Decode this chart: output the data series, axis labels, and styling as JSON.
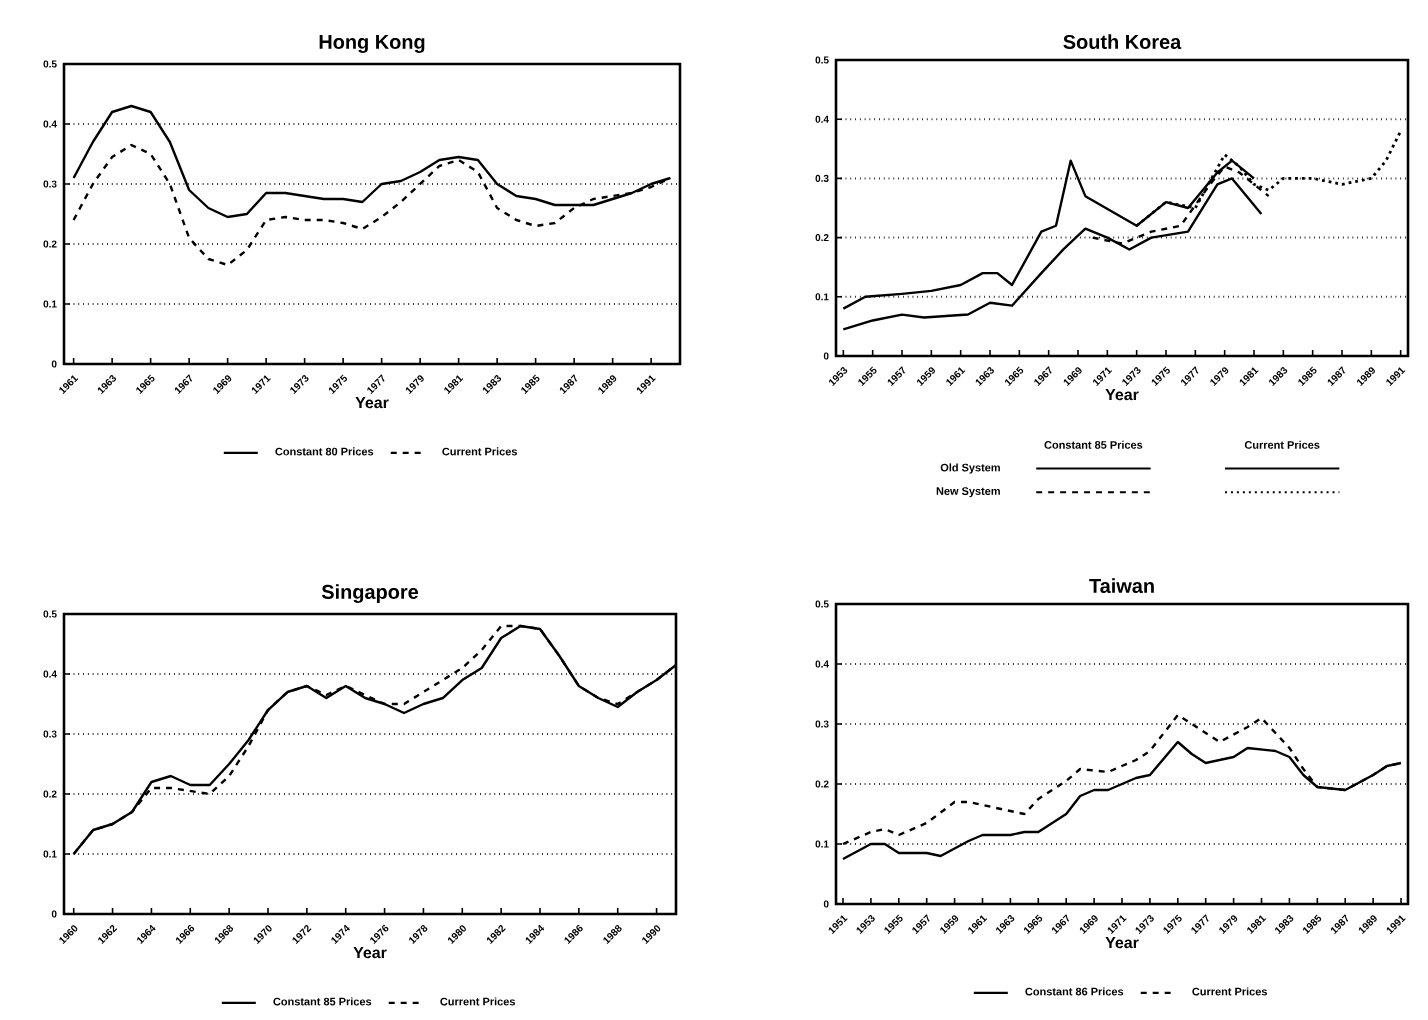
{
  "chart_data": [
    {
      "type": "line",
      "title": "Hong Kong",
      "xlabel": "Year",
      "xlim": [
        1960.5,
        1992.5
      ],
      "ylim": [
        0,
        0.5
      ],
      "xticks": [
        1961,
        1963,
        1965,
        1967,
        1969,
        1971,
        1973,
        1975,
        1977,
        1979,
        1981,
        1983,
        1985,
        1987,
        1989,
        1991
      ],
      "yticks": [
        0,
        0.1,
        0.2,
        0.3,
        0.4,
        0.5
      ],
      "grid": "y",
      "legend": "bottom",
      "series": [
        {
          "name": "Constant 80 Prices",
          "color": "#000000",
          "line_style": "solid",
          "x": [
            1961,
            1962,
            1963,
            1964,
            1965,
            1966,
            1967,
            1968,
            1969,
            1970,
            1971,
            1972,
            1974,
            1975,
            1976,
            1977,
            1978,
            1979,
            1980,
            1981,
            1982,
            1983,
            1984,
            1985,
            1986,
            1987,
            1988,
            1989,
            1990,
            1991,
            1992
          ],
          "values": [
            0.31,
            0.37,
            0.42,
            0.43,
            0.42,
            0.37,
            0.29,
            0.26,
            0.245,
            0.25,
            0.285,
            0.285,
            0.275,
            0.275,
            0.27,
            0.3,
            0.305,
            0.32,
            0.34,
            0.345,
            0.34,
            0.3,
            0.28,
            0.275,
            0.265,
            0.265,
            0.265,
            0.275,
            0.285,
            0.3,
            0.31
          ]
        },
        {
          "name": "Current Prices",
          "color": "#000000",
          "line_style": "dashed",
          "x": [
            1961,
            1962,
            1963,
            1964,
            1965,
            1966,
            1967,
            1968,
            1969,
            1970,
            1971,
            1972,
            1973,
            1974,
            1975,
            1976,
            1977,
            1978,
            1979,
            1980,
            1981,
            1982,
            1983,
            1984,
            1985,
            1986,
            1987,
            1988,
            1989,
            1990,
            1991,
            1992
          ],
          "values": [
            0.24,
            0.3,
            0.345,
            0.365,
            0.35,
            0.3,
            0.21,
            0.175,
            0.165,
            0.19,
            0.24,
            0.245,
            0.24,
            0.24,
            0.235,
            0.225,
            0.245,
            0.27,
            0.3,
            0.33,
            0.34,
            0.32,
            0.26,
            0.24,
            0.23,
            0.235,
            0.26,
            0.275,
            0.28,
            0.285,
            0.295,
            0.31
          ]
        }
      ]
    },
    {
      "type": "line",
      "title": "South Korea",
      "xlabel": "Year",
      "xlim": [
        1952.5,
        1991.5
      ],
      "ylim": [
        0,
        0.5
      ],
      "xticks": [
        1953,
        1955,
        1957,
        1959,
        1961,
        1963,
        1965,
        1967,
        1969,
        1971,
        1973,
        1975,
        1977,
        1979,
        1981,
        1983,
        1985,
        1987,
        1989,
        1991
      ],
      "yticks": [
        0,
        0.1,
        0.2,
        0.3,
        0.4,
        0.5
      ],
      "grid": "y",
      "legend": "bottom",
      "annotations": [
        "Constant 85 Prices",
        "Current Prices",
        "Old System",
        "New System"
      ],
      "series": [
        {
          "color": "#000000",
          "line_style": "solid",
          "x": [
            1953,
            1955,
            1957,
            1958.5,
            1961.5,
            1963,
            1964.5,
            1966.5,
            1968,
            1969.5,
            1971,
            1972.5,
            1974,
            1976.5,
            1978.5,
            1979.5,
            1981.5
          ],
          "values": [
            0.045,
            0.06,
            0.07,
            0.065,
            0.07,
            0.09,
            0.085,
            0.14,
            0.18,
            0.215,
            0.2,
            0.18,
            0.2,
            0.21,
            0.29,
            0.3,
            0.24
          ]
        },
        {
          "color": "#000000",
          "line_style": "solid",
          "x": [
            1953,
            1954.5,
            1957,
            1959,
            1961,
            1962.5,
            1963.5,
            1964.5,
            1966.5,
            1967.5,
            1968.5,
            1969.5,
            1973,
            1975,
            1976.5,
            1978.5,
            1979.5,
            1981
          ],
          "values": [
            0.08,
            0.1,
            0.105,
            0.11,
            0.12,
            0.14,
            0.14,
            0.12,
            0.21,
            0.22,
            0.33,
            0.27,
            0.22,
            0.26,
            0.25,
            0.31,
            0.33,
            0.3
          ]
        },
        {
          "color": "#000000",
          "line_style": "dashed",
          "x": [
            1970,
            1972,
            1974,
            1976,
            1978,
            1979,
            1980,
            1982
          ],
          "values": [
            0.2,
            0.19,
            0.21,
            0.22,
            0.29,
            0.32,
            0.31,
            0.27
          ]
        },
        {
          "color": "#000000",
          "line_style": "dotted",
          "x": [
            1973,
            1975,
            1977,
            1979,
            1980,
            1981,
            1982,
            1983,
            1985,
            1987,
            1989,
            1990,
            1991
          ],
          "values": [
            0.22,
            0.26,
            0.25,
            0.34,
            0.32,
            0.29,
            0.28,
            0.3,
            0.3,
            0.29,
            0.3,
            0.33,
            0.38
          ]
        }
      ]
    },
    {
      "type": "line",
      "title": "Singapore",
      "xlabel": "Year",
      "xlim": [
        1959.5,
        1991
      ],
      "ylim": [
        0,
        0.5
      ],
      "xticks": [
        1960,
        1962,
        1964,
        1966,
        1968,
        1970,
        1972,
        1974,
        1976,
        1978,
        1980,
        1982,
        1984,
        1986,
        1988,
        1990
      ],
      "yticks": [
        0,
        0.1,
        0.2,
        0.3,
        0.4,
        0.5
      ],
      "grid": "y",
      "legend": "bottom",
      "series": [
        {
          "name": "Constant 85 Prices",
          "color": "#000000",
          "line_style": "solid",
          "x": [
            1960,
            1961,
            1962,
            1963,
            1964,
            1965,
            1966,
            1967,
            1968,
            1969,
            1970,
            1971,
            1972,
            1973,
            1974,
            1975,
            1976,
            1977,
            1978,
            1979,
            1980,
            1981,
            1982,
            1983,
            1984,
            1985,
            1986,
            1987,
            1988,
            1989,
            1990,
            1991
          ],
          "values": [
            0.1,
            0.14,
            0.15,
            0.17,
            0.22,
            0.23,
            0.215,
            0.215,
            0.25,
            0.29,
            0.34,
            0.37,
            0.38,
            0.36,
            0.38,
            0.36,
            0.35,
            0.335,
            0.35,
            0.36,
            0.39,
            0.41,
            0.46,
            0.48,
            0.475,
            0.43,
            0.38,
            0.36,
            0.345,
            0.37,
            0.39,
            0.415
          ]
        },
        {
          "name": "Current Prices",
          "color": "#000000",
          "line_style": "dashed",
          "x": [
            1960,
            1961,
            1962,
            1963,
            1964,
            1965,
            1966,
            1967,
            1968,
            1969,
            1970,
            1971,
            1972,
            1973,
            1974,
            1975,
            1976,
            1977,
            1978,
            1979,
            1980,
            1981,
            1982,
            1983,
            1984,
            1985,
            1986,
            1987,
            1988,
            1989,
            1990,
            1991
          ],
          "values": [
            0.1,
            0.14,
            0.15,
            0.17,
            0.21,
            0.21,
            0.205,
            0.2,
            0.23,
            0.28,
            0.34,
            0.37,
            0.38,
            0.365,
            0.38,
            0.365,
            0.35,
            0.35,
            0.37,
            0.39,
            0.41,
            0.44,
            0.48,
            0.48,
            0.475,
            0.43,
            0.38,
            0.36,
            0.35,
            0.37,
            0.39,
            0.415
          ]
        }
      ]
    },
    {
      "type": "line",
      "title": "Taiwan",
      "xlabel": "Year",
      "xlim": [
        1950.5,
        1991.5
      ],
      "ylim": [
        0,
        0.5
      ],
      "xticks": [
        1951,
        1953,
        1955,
        1957,
        1959,
        1961,
        1963,
        1965,
        1967,
        1969,
        1971,
        1973,
        1975,
        1977,
        1979,
        1981,
        1983,
        1985,
        1987,
        1989,
        1991
      ],
      "yticks": [
        0,
        0.1,
        0.2,
        0.3,
        0.4,
        0.5
      ],
      "grid": "y",
      "legend": "bottom",
      "series": [
        {
          "name": "Constant 86 Prices",
          "color": "#000000",
          "line_style": "solid",
          "x": [
            1951,
            1953,
            1954,
            1955,
            1957,
            1958,
            1960,
            1961,
            1963,
            1964,
            1965,
            1967,
            1968,
            1969,
            1970,
            1972,
            1973,
            1975,
            1976,
            1977,
            1979,
            1980,
            1982,
            1983,
            1984,
            1985,
            1987,
            1989,
            1990,
            1991
          ],
          "values": [
            0.075,
            0.1,
            0.1,
            0.085,
            0.085,
            0.08,
            0.105,
            0.115,
            0.115,
            0.12,
            0.12,
            0.15,
            0.18,
            0.19,
            0.19,
            0.21,
            0.215,
            0.27,
            0.25,
            0.235,
            0.245,
            0.26,
            0.255,
            0.245,
            0.215,
            0.195,
            0.19,
            0.215,
            0.23,
            0.235
          ]
        },
        {
          "name": "Current Prices",
          "color": "#000000",
          "line_style": "dashed",
          "x": [
            1951,
            1953,
            1954,
            1955,
            1957,
            1959,
            1960,
            1963,
            1964,
            1965,
            1967,
            1968,
            1970,
            1972,
            1973,
            1975,
            1977,
            1978,
            1980,
            1981,
            1983,
            1984,
            1985,
            1987,
            1989,
            1990,
            1991
          ],
          "values": [
            0.1,
            0.12,
            0.125,
            0.115,
            0.135,
            0.17,
            0.17,
            0.155,
            0.15,
            0.175,
            0.205,
            0.225,
            0.22,
            0.24,
            0.255,
            0.315,
            0.285,
            0.27,
            0.295,
            0.31,
            0.26,
            0.225,
            0.195,
            0.19,
            0.215,
            0.23,
            0.235
          ]
        }
      ]
    }
  ]
}
